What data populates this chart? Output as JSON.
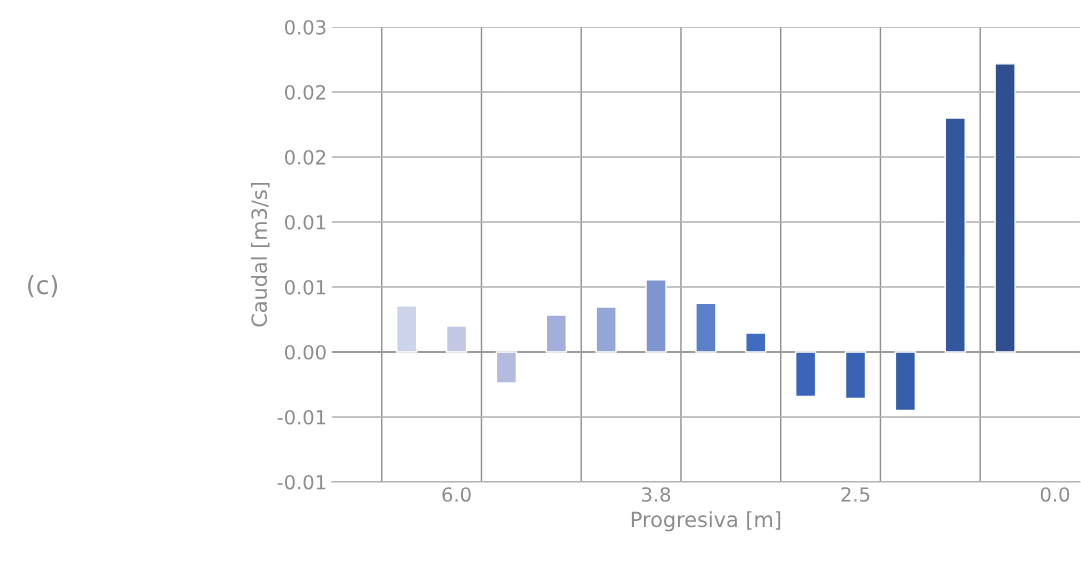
{
  "chart_data": {
    "type": "bar",
    "xlabel": "Progresiva [m]",
    "ylabel": "Caudal [m3/s]",
    "annotations": [
      "(c)"
    ],
    "categories": [
      null,
      null,
      "6.0",
      null,
      null,
      null,
      "3.8",
      null,
      null,
      null,
      "2.5",
      null,
      null,
      null,
      "0.0"
    ],
    "values": [
      null,
      0.00425,
      0.0024,
      -0.00286,
      0.0034,
      0.00415,
      0.00665,
      0.0045,
      0.00175,
      -0.0041,
      -0.0043,
      -0.0054,
      0.0216,
      0.0266,
      null
    ],
    "colors": [
      "#cdd3ea",
      "#cdd3ea",
      "#c2c8e4",
      "#b3bbdf",
      "#a3afda",
      "#93a6d6",
      "#7f95d0",
      "#5b80ca",
      "#3f6cc0",
      "#3a65b8",
      "#3862b3",
      "#355daa",
      "#33579e",
      "#2f4f8e",
      "#2f4f8e"
    ],
    "ylim": [
      -0.012,
      0.03
    ],
    "yticks": [
      {
        "value": -0.012,
        "label": "-0.01"
      },
      {
        "value": -0.006,
        "label": "-0.01"
      },
      {
        "value": 0,
        "label": "0.00"
      },
      {
        "value": 0.006,
        "label": "0.01"
      },
      {
        "value": 0.012,
        "label": "0.01"
      },
      {
        "value": 0.018,
        "label": "0.02"
      },
      {
        "value": 0.024,
        "label": "0.02"
      },
      {
        "value": 0.03,
        "label": "0.03"
      }
    ],
    "grid": true,
    "legend": false
  }
}
